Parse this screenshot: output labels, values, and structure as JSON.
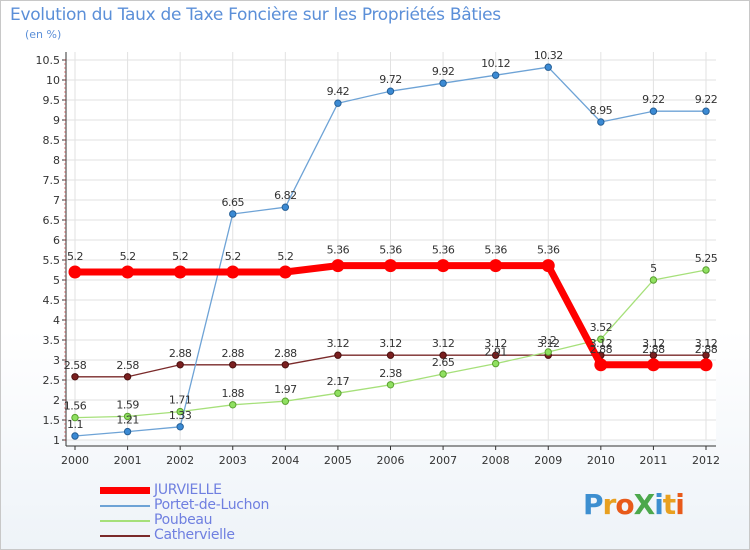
{
  "page": {
    "title": "Evolution du Taux de Taxe Foncière sur les Propriétés Bâties",
    "unit_label": "(en %)",
    "logo_text": "ProXiti"
  },
  "chart_data": {
    "type": "line",
    "title": "Evolution du Taux de Taxe Foncière sur les Propriétés Bâties",
    "ylabel": "(en %)",
    "xlabel": "",
    "ylim": [
      1,
      10.5
    ],
    "y_ticks": [
      "1",
      "1.5",
      "2",
      "2.5",
      "3",
      "3.5",
      "4",
      "4.5",
      "5",
      "5.5",
      "6",
      "6.5",
      "7",
      "7.5",
      "8",
      "8.5",
      "9",
      "9.5",
      "10",
      "10.5"
    ],
    "categories": [
      "2000",
      "2001",
      "2002",
      "2003",
      "2004",
      "2005",
      "2006",
      "2007",
      "2008",
      "2009",
      "2010",
      "2011",
      "2012"
    ],
    "legend_position": "bottom-left",
    "series": [
      {
        "name": "JURVIELLE",
        "color": "#ff0000",
        "values": [
          5.2,
          5.2,
          5.2,
          5.2,
          5.2,
          5.36,
          5.36,
          5.36,
          5.36,
          5.36,
          2.88,
          2.88,
          2.88
        ],
        "labels": [
          "5.2",
          "5.2",
          "5.2",
          "5.2",
          "5.2",
          "5.36",
          "5.36",
          "5.36",
          "5.36",
          "5.36",
          "2.88",
          "2.88",
          "2.88"
        ]
      },
      {
        "name": "Portet-de-Luchon",
        "color": "#6ea3d6",
        "values": [
          1.1,
          1.21,
          1.33,
          6.65,
          6.82,
          9.42,
          9.72,
          9.92,
          10.12,
          10.32,
          8.95,
          9.22,
          9.22
        ],
        "labels": [
          "1.1",
          "1.21",
          "1.33",
          "6.65",
          "6.82",
          "9.42",
          "9.72",
          "9.92",
          "10.12",
          "10.32",
          "8.95",
          "9.22",
          "9.22"
        ]
      },
      {
        "name": "Poubeau",
        "color": "#a6e07a",
        "values": [
          1.56,
          1.59,
          1.71,
          1.88,
          1.97,
          2.17,
          2.38,
          2.65,
          2.91,
          3.2,
          3.52,
          5,
          5.25
        ],
        "labels": [
          "1.56",
          "1.59",
          "1.71",
          "1.88",
          "1.97",
          "2.17",
          "2.38",
          "2.65",
          "2.91",
          "3.2",
          "3.52",
          "5",
          "5.25"
        ]
      },
      {
        "name": "Cathervielle",
        "color": "#7a2a2a",
        "values": [
          2.58,
          2.58,
          2.88,
          2.88,
          2.88,
          3.12,
          3.12,
          3.12,
          3.12,
          3.12,
          3.12,
          3.12,
          3.12
        ],
        "labels": [
          "2.58",
          "2.58",
          "2.88",
          "2.88",
          "2.88",
          "3.12",
          "3.12",
          "3.12",
          "3.12",
          "3.12",
          "3.12",
          "3.12",
          "3.12"
        ]
      }
    ]
  }
}
